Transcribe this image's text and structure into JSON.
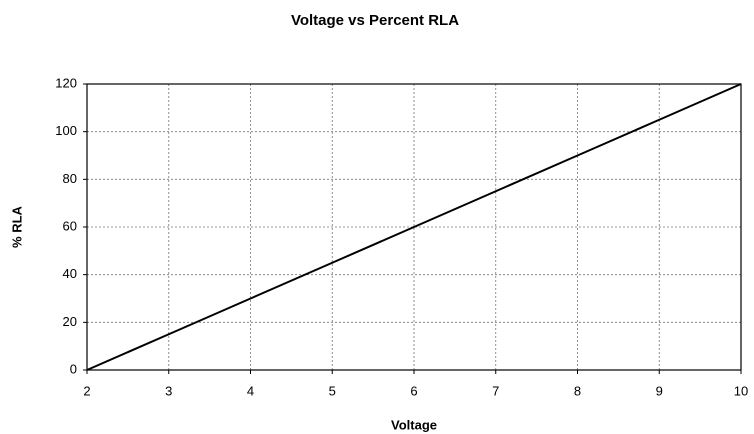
{
  "chart_data": {
    "type": "line",
    "title": "Voltage vs Percent RLA",
    "x_label": "Voltage",
    "y_label": "% RLA",
    "x": [
      2,
      3,
      4,
      5,
      6,
      7,
      8,
      9,
      10
    ],
    "series": [
      {
        "name": "% RLA",
        "color": "#000000",
        "values": [
          0,
          15,
          30,
          45,
          60,
          75,
          90,
          105,
          120
        ]
      }
    ],
    "xlim": [
      2,
      10
    ],
    "xticks": [
      2,
      3,
      4,
      5,
      6,
      7,
      8,
      9,
      10
    ],
    "ylim": [
      0,
      120
    ],
    "yticks": [
      0,
      20,
      40,
      60,
      80,
      100,
      120
    ],
    "grid": true,
    "legend": false
  }
}
